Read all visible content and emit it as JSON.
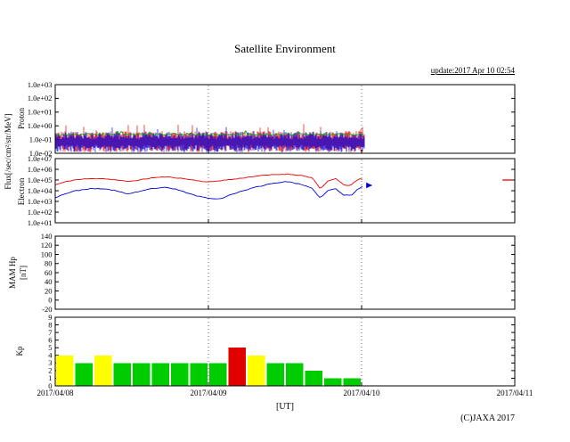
{
  "texts": {
    "title": "Satellite Environment",
    "update_note": "update:2017 Apr 10 02:54",
    "copyright": "(C)JAXA 2017",
    "flux_axis_label": "Flux[/sec/cm²/str/MeV]"
  },
  "x_axis": {
    "labels": [
      "2017/04/08",
      "2017/04/09",
      "2017/04/10",
      "2017/04/11"
    ],
    "unit_label": "[UT]",
    "total_days": 3
  },
  "chart_data": [
    {
      "id": "proton",
      "type": "line",
      "ylabel": "Proton",
      "yscale": "log",
      "ylim_log": [
        -2,
        3
      ],
      "ytick_labels": [
        "1.0e+03",
        "1.0e+02",
        "1.0e+01",
        "1.0e+00",
        "1.0e-01",
        "1.0e-02"
      ],
      "ytick_logs": [
        3,
        2,
        1,
        0,
        -1,
        -2
      ],
      "data_end_day": 2.02,
      "series": [
        {
          "name": "red-trace",
          "color": "#ee0000",
          "style": "noise",
          "center_log": -1.12,
          "up_spread": 0.55,
          "down_spread": 0.55,
          "spike": 0.5,
          "seed": 7
        },
        {
          "name": "blue-trace",
          "color": "#0000dd",
          "style": "noise",
          "center_log": -1.18,
          "up_spread": 0.55,
          "down_spread": 0.5,
          "spike": 0.45,
          "seed": 42
        },
        {
          "name": "green-trace",
          "color": "#00aa00",
          "style": "jitter-line",
          "base_log": -0.62,
          "jitter": 0.16,
          "spike": 0.18,
          "seed": 99
        }
      ]
    },
    {
      "id": "electron",
      "type": "line",
      "ylabel": "Electron",
      "yscale": "log",
      "ylim_log": [
        1,
        7
      ],
      "ytick_labels": [
        "1.0e+07",
        "1.0e+06",
        "1.0e+05",
        "1.0e+04",
        "1.0e+03",
        "1.0e+02",
        "1.0e+01"
      ],
      "ytick_logs": [
        7,
        6,
        5,
        4,
        3,
        2,
        1
      ],
      "points_format": "[days_since_2017/04/08, log10_flux]",
      "series": [
        {
          "name": "red-trace",
          "color": "#ee0000",
          "style": "line",
          "seed": 11,
          "points": [
            [
              0,
              4.55
            ],
            [
              0.06,
              4.8
            ],
            [
              0.12,
              5.0
            ],
            [
              0.2,
              5.1
            ],
            [
              0.3,
              5.15
            ],
            [
              0.4,
              5.0
            ],
            [
              0.47,
              4.85
            ],
            [
              0.55,
              5.0
            ],
            [
              0.63,
              5.2
            ],
            [
              0.72,
              5.3
            ],
            [
              0.8,
              5.2
            ],
            [
              0.9,
              5.0
            ],
            [
              1.0,
              4.8
            ],
            [
              1.08,
              4.95
            ],
            [
              1.18,
              5.1
            ],
            [
              1.3,
              5.35
            ],
            [
              1.42,
              5.5
            ],
            [
              1.52,
              5.55
            ],
            [
              1.6,
              5.45
            ],
            [
              1.68,
              5.2
            ],
            [
              1.73,
              4.15
            ],
            [
              1.78,
              4.9
            ],
            [
              1.83,
              5.15
            ],
            [
              1.88,
              4.55
            ],
            [
              1.93,
              4.5
            ],
            [
              1.98,
              5.1
            ],
            [
              2.02,
              5.05
            ]
          ]
        },
        {
          "name": "blue-trace",
          "color": "#0000dd",
          "style": "line",
          "seed": 23,
          "points": [
            [
              0,
              3.35
            ],
            [
              0.06,
              3.7
            ],
            [
              0.12,
              3.95
            ],
            [
              0.2,
              4.15
            ],
            [
              0.3,
              4.2
            ],
            [
              0.4,
              4.0
            ],
            [
              0.47,
              3.7
            ],
            [
              0.55,
              3.9
            ],
            [
              0.63,
              4.2
            ],
            [
              0.72,
              4.3
            ],
            [
              0.8,
              4.1
            ],
            [
              0.9,
              3.6
            ],
            [
              1.0,
              3.3
            ],
            [
              1.08,
              3.25
            ],
            [
              1.18,
              3.8
            ],
            [
              1.3,
              4.3
            ],
            [
              1.42,
              4.7
            ],
            [
              1.52,
              4.85
            ],
            [
              1.6,
              4.6
            ],
            [
              1.68,
              4.2
            ],
            [
              1.73,
              3.3
            ],
            [
              1.78,
              4.0
            ],
            [
              1.83,
              4.2
            ],
            [
              1.88,
              3.6
            ],
            [
              1.93,
              3.55
            ],
            [
              1.98,
              4.2
            ],
            [
              2.02,
              4.5
            ]
          ]
        }
      ],
      "markers": [
        {
          "type": "dash",
          "color": "#ee0000",
          "day_start": 2.92,
          "day_end": 2.99,
          "log_value": 5.0
        },
        {
          "type": "arrow-right",
          "color": "#0000dd",
          "day": 2.03,
          "log_value": 4.5
        }
      ]
    },
    {
      "id": "mam",
      "type": "line",
      "ylabel_line1": "MAM Hp",
      "ylabel_line2": "[nT]",
      "yscale": "linear",
      "ylim": [
        -20,
        140
      ],
      "ytick_labels": [
        "140",
        "120",
        "100",
        "80",
        "60",
        "40",
        "20",
        "0",
        "-20"
      ],
      "ytick_values": [
        140,
        120,
        100,
        80,
        60,
        40,
        20,
        0,
        -20
      ],
      "no_data": true,
      "series": []
    },
    {
      "id": "kp",
      "type": "bar",
      "ylabel": "Kp",
      "yscale": "linear",
      "ylim": [
        0,
        9
      ],
      "ytick_labels": [
        "9",
        "8",
        "7",
        "6",
        "5",
        "4",
        "3",
        "2",
        "1",
        "0"
      ],
      "ytick_values": [
        9,
        8,
        7,
        6,
        5,
        4,
        3,
        2,
        1,
        0
      ],
      "bin_hours": 3,
      "start_day": 0,
      "values": [
        4,
        3,
        4,
        3,
        3,
        3,
        3,
        3,
        3,
        5,
        4,
        3,
        3,
        2,
        1,
        1
      ],
      "palette": {
        "low": "#00cc00",
        "mid": "#ffff00",
        "high": "#e00000"
      },
      "thresholds": {
        "mid_min": 4,
        "high_min": 5
      }
    }
  ]
}
